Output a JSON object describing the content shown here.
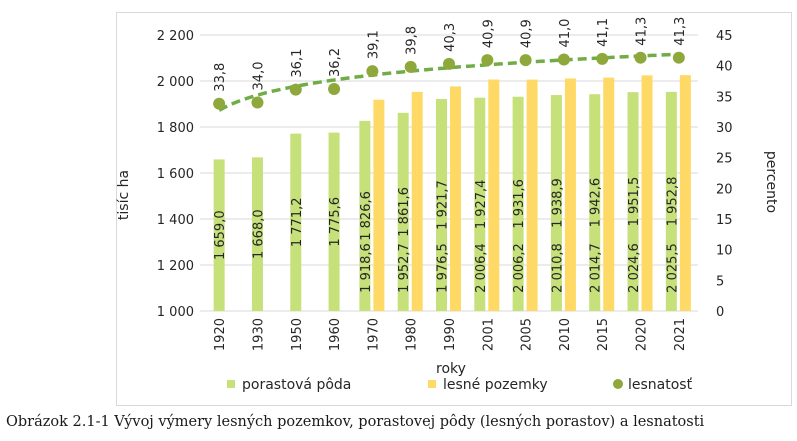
{
  "caption": "Obrázok 2.1-1 Vývoj výmery lesných pozemkov, porastovej pôdy (lesných porastov) a lesnatosti",
  "chart_data": {
    "type": "bar",
    "categories": [
      "1920",
      "1930",
      "1950",
      "1960",
      "1970",
      "1980",
      "1990",
      "2001",
      "2005",
      "2010",
      "2015",
      "2020",
      "2021"
    ],
    "xlabel": "roky",
    "ylabel": "tisíc ha",
    "y2label": "percento",
    "ylim": [
      1000,
      2200
    ],
    "yticks": [
      1000,
      1200,
      1400,
      1600,
      1800,
      2000,
      2200
    ],
    "ytick_labels": [
      "1 000",
      "1 200",
      "1 400",
      "1 600",
      "1 800",
      "2 000",
      "2 200"
    ],
    "y2lim": [
      0,
      45
    ],
    "y2ticks": [
      0,
      5,
      10,
      15,
      20,
      25,
      30,
      35,
      40,
      45
    ],
    "y2tick_labels": [
      "0",
      "5",
      "10",
      "15",
      "20",
      "25",
      "30",
      "35",
      "40",
      "45"
    ],
    "grid": true,
    "legend_position": "bottom",
    "series": [
      {
        "name": "porastová pôda",
        "type": "bar",
        "axis": "left",
        "color": "#c6e07a",
        "values": [
          1659.0,
          1668.0,
          1771.2,
          1775.6,
          1826.6,
          1861.6,
          1921.7,
          1927.4,
          1931.6,
          1938.9,
          1942.6,
          1951.5,
          1952.8
        ],
        "labels": [
          "1 659,0",
          "1 668,0",
          "1 771,2",
          "1 775,6",
          "1 826,6",
          "1 861,6",
          "1 921,7",
          "1 927,4",
          "1 931,6",
          "1 938,9",
          "1 942,6",
          "1 951,5",
          "1 952,8"
        ]
      },
      {
        "name": "lesné pozemky",
        "type": "bar",
        "axis": "left",
        "color": "#ffd966",
        "values": [
          null,
          null,
          null,
          null,
          1918.6,
          1952.7,
          1976.5,
          2006.4,
          2006.2,
          2010.8,
          2014.7,
          2024.6,
          2025.5
        ],
        "labels": [
          "",
          "",
          "",
          "",
          "1 918,6",
          "1 952,7",
          "1 976,5",
          "2 006,4",
          "2 006,2",
          "2 010,8",
          "2 014,7",
          "2 024,6",
          "2 025,5"
        ]
      },
      {
        "name": "lesnatosť",
        "type": "scatter",
        "axis": "right",
        "color": "#8fa83c",
        "values": [
          33.8,
          34.0,
          36.1,
          36.2,
          39.1,
          39.8,
          40.3,
          40.9,
          40.9,
          41.0,
          41.1,
          41.3,
          41.3
        ],
        "labels": [
          "33,8",
          "34,0",
          "36,1",
          "36,2",
          "39,1",
          "39,8",
          "40,3",
          "40,9",
          "40,9",
          "41,0",
          "41,1",
          "41,3",
          "41,3"
        ]
      }
    ],
    "trendline": {
      "of_series": "lesnatosť",
      "kind": "logarithmic",
      "style": "dashed",
      "color": "#70ad47"
    }
  }
}
